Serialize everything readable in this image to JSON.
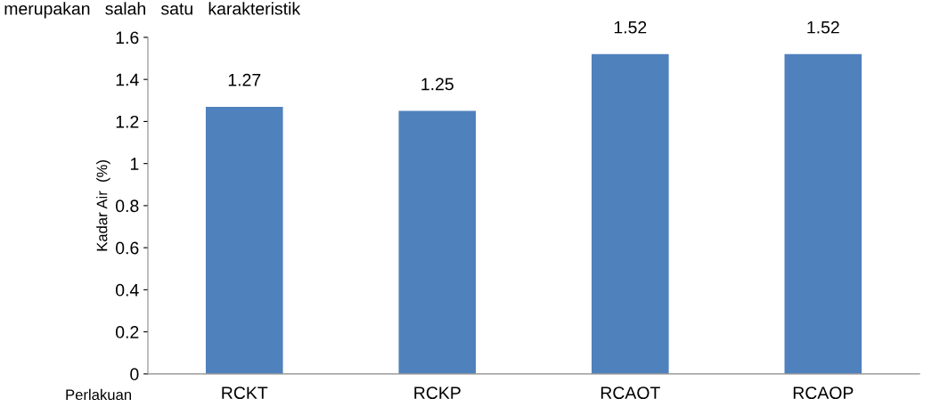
{
  "chart_data": {
    "type": "bar",
    "categories": [
      "RCKT",
      "RCKP",
      "RCAOT",
      "RCAOP"
    ],
    "values": [
      1.27,
      1.25,
      1.52,
      1.52
    ],
    "color": "#4f81bd",
    "xlabel": "Perlakuan",
    "ylabel": "Kadar Air  (%)",
    "ylim": [
      0,
      1.6
    ],
    "yticks": [
      0,
      0.2,
      0.4,
      0.6,
      0.8,
      1,
      1.2,
      1.4,
      1.6
    ],
    "data_labels": true,
    "grid": false,
    "legend": false,
    "annotations": [
      "merupakan   salah   satu   karakteristik"
    ]
  }
}
